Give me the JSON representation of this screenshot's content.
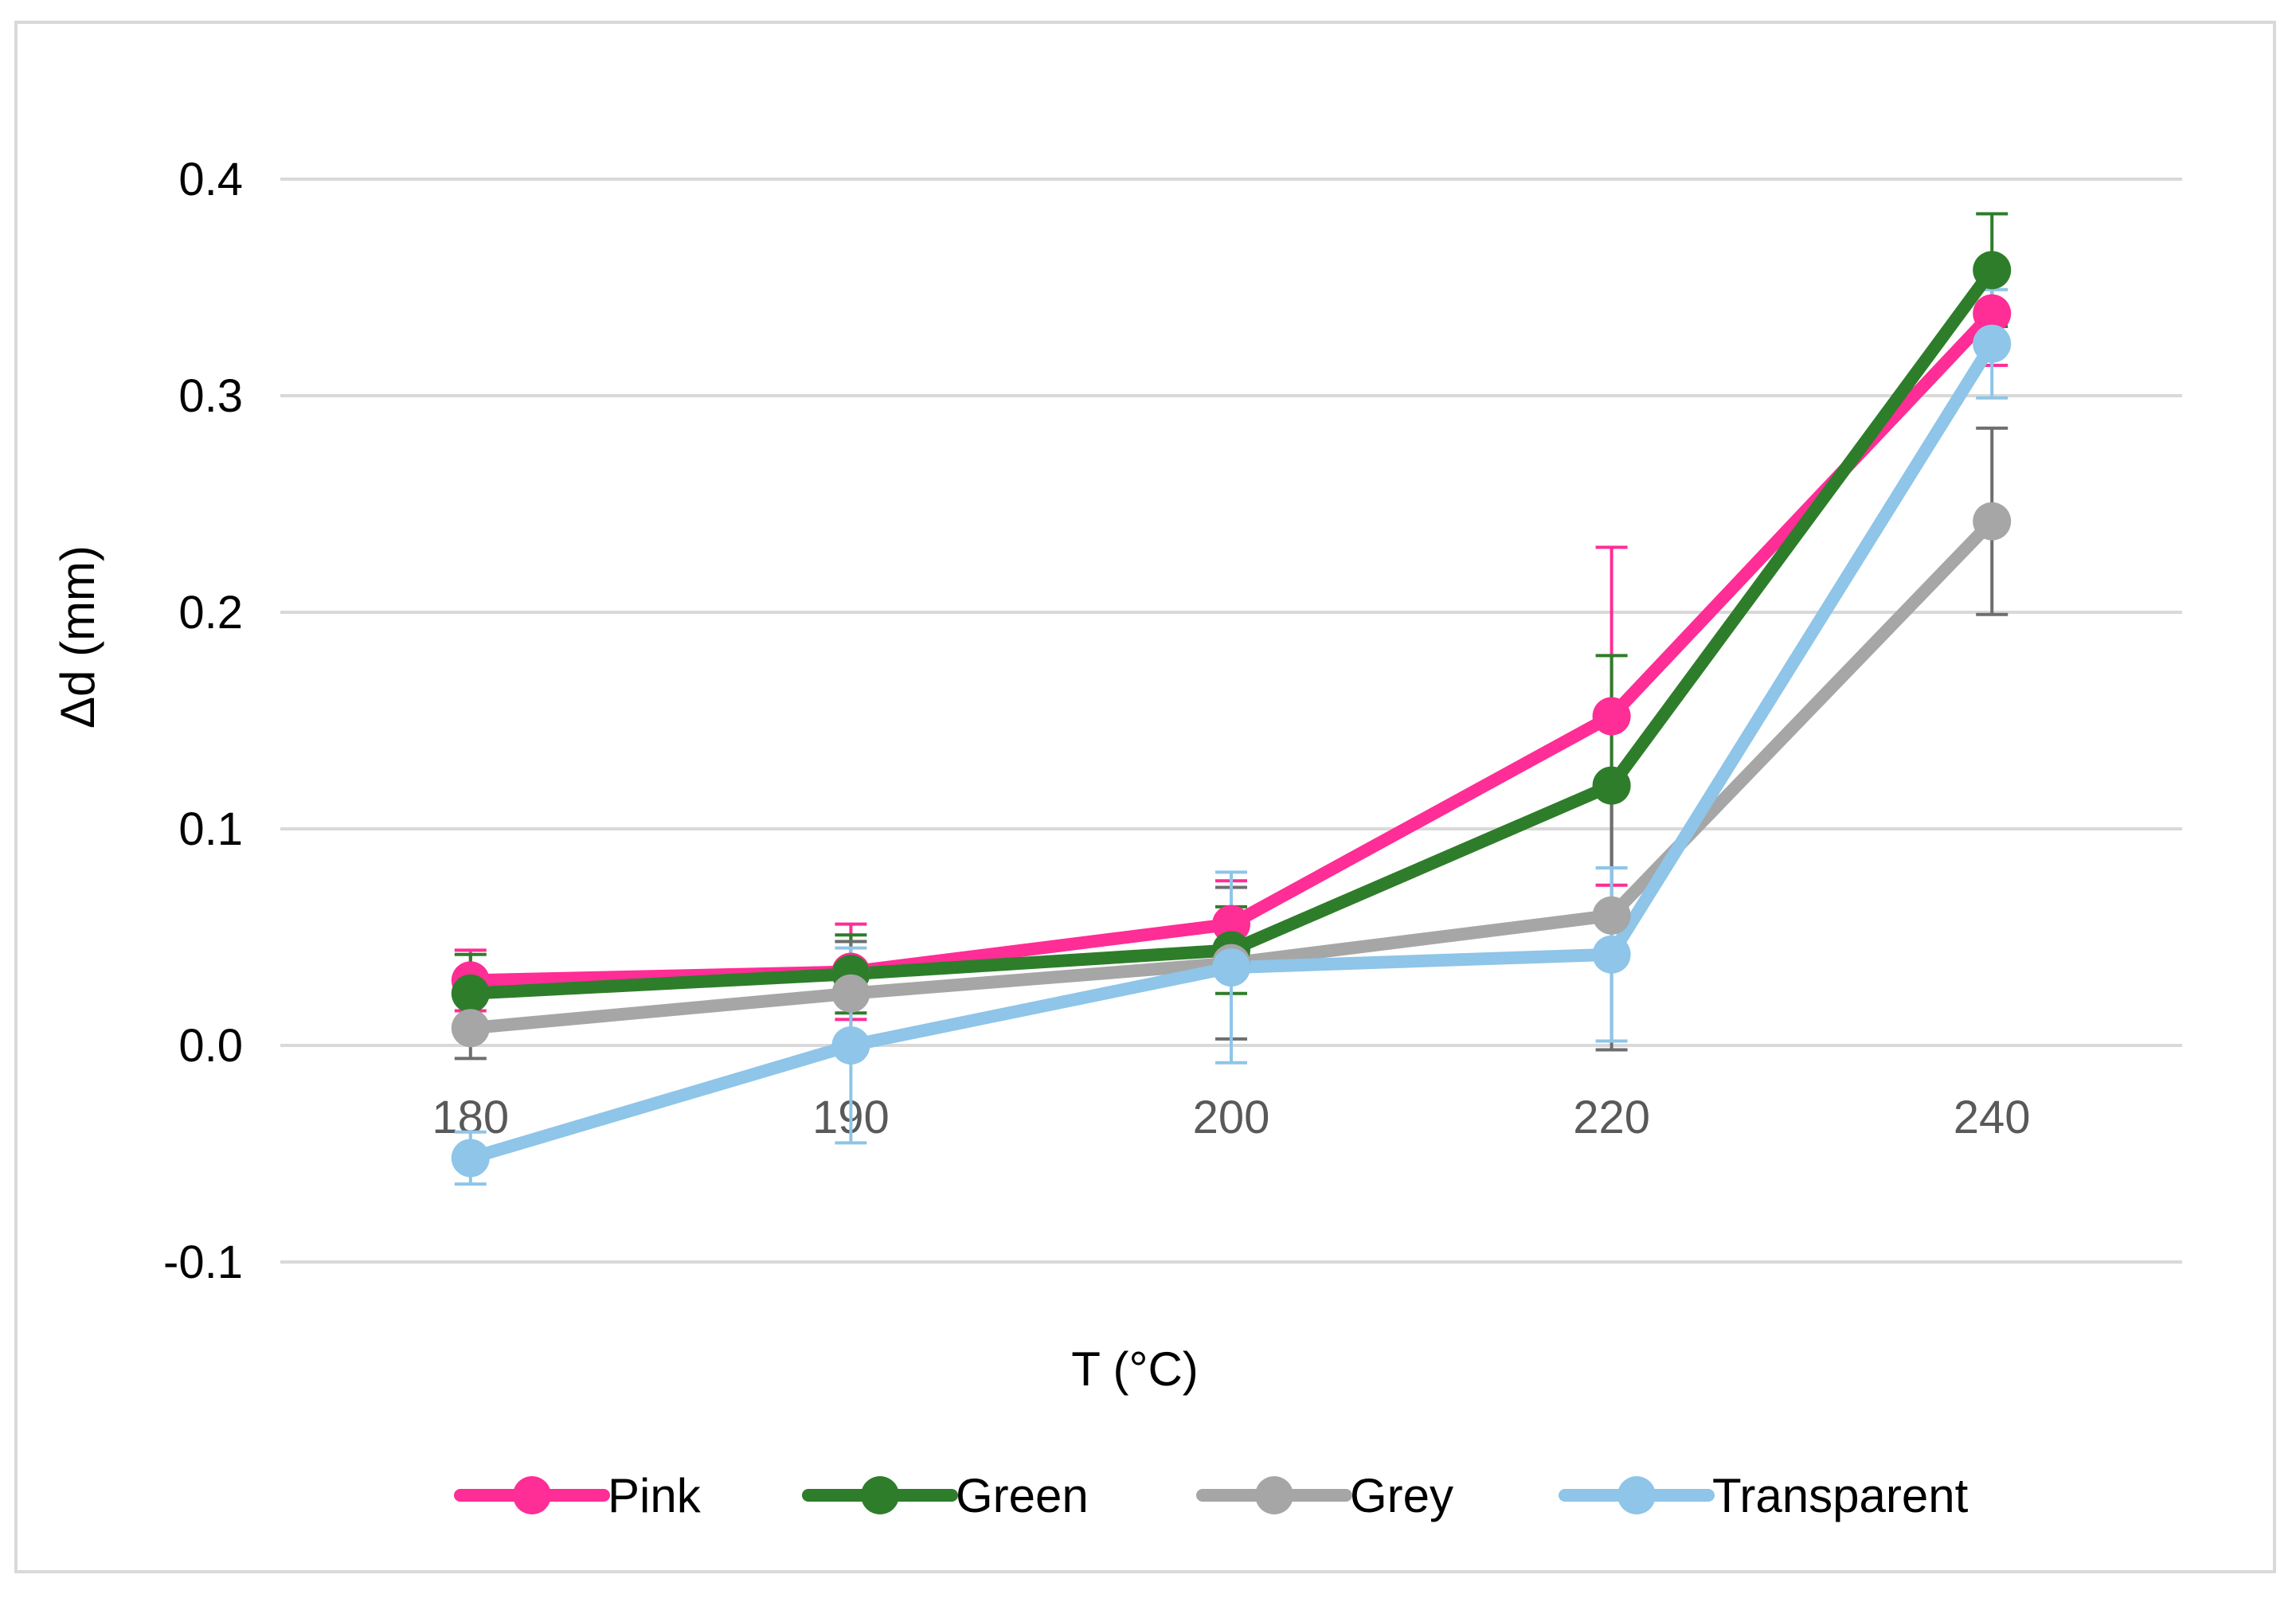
{
  "chart_data": {
    "type": "line",
    "categories": [
      "180",
      "190",
      "200",
      "220",
      "240"
    ],
    "xlabel": "T (°C)",
    "ylabel": "Δd (mm)",
    "ylim": [
      -0.1,
      0.4
    ],
    "yticks": [
      "-0.1",
      "0.0",
      "0.1",
      "0.2",
      "0.3",
      "0.4"
    ],
    "grid": true,
    "legend_position": "bottom",
    "series": [
      {
        "name": "Pink",
        "color": "#ff2d96",
        "values": [
          0.03,
          0.034,
          0.056,
          0.152,
          0.338
        ],
        "error": [
          0.014,
          0.022,
          0.02,
          0.078,
          0.024
        ]
      },
      {
        "name": "Green",
        "color": "#2e7d2a",
        "values": [
          0.024,
          0.033,
          0.044,
          0.12,
          0.358
        ],
        "error": [
          0.018,
          0.018,
          0.02,
          0.06,
          0.026
        ]
      },
      {
        "name": "Grey",
        "color": "#a6a6a6",
        "values": [
          0.008,
          0.024,
          0.038,
          0.06,
          0.242
        ],
        "error": [
          0.014,
          0.024,
          0.035,
          0.062,
          0.043
        ]
      },
      {
        "name": "Transparent",
        "color": "#8ec5e8",
        "values": [
          -0.052,
          0.0,
          0.036,
          0.042,
          0.324
        ],
        "error": [
          0.012,
          0.045,
          0.044,
          0.04,
          0.025
        ]
      }
    ]
  }
}
